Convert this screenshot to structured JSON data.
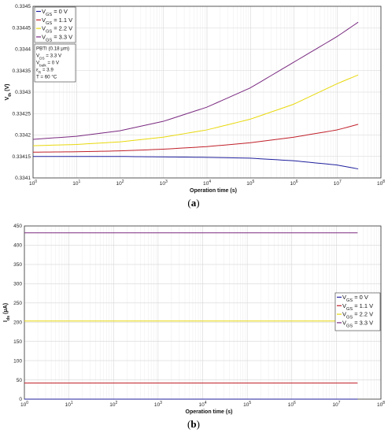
{
  "chart_data": [
    {
      "type": "line",
      "caption": "(a)",
      "xlabel": "Operation time (s)",
      "ylabel": "V_th (V)",
      "xscale": "log",
      "xlim": [
        1,
        100000000
      ],
      "ylim": [
        0.3341,
        0.3345
      ],
      "y_ticks": [
        "0.3341",
        "0.33415",
        "0.3342",
        "0.33425",
        "0.3343",
        "0.33435",
        "0.3344",
        "0.33445",
        "0.3345"
      ],
      "grid": true,
      "legend_position": "top-left",
      "series": [
        {
          "name": "V_GS = 0 V",
          "color": "#1f1f9e",
          "x": [
            1,
            10,
            100,
            1000,
            10000,
            100000,
            1000000,
            10000000,
            30000000
          ],
          "y": [
            0.33415,
            0.33415,
            0.33415,
            0.334149,
            0.334148,
            0.334146,
            0.33414,
            0.33413,
            0.334121
          ]
        },
        {
          "name": "V_GS = 1.1 V",
          "color": "#c0202a",
          "x": [
            1,
            10,
            100,
            1000,
            10000,
            100000,
            1000000,
            10000000,
            30000000
          ],
          "y": [
            0.33416,
            0.334161,
            0.334163,
            0.334167,
            0.334173,
            0.334182,
            0.334195,
            0.334212,
            0.334225
          ]
        },
        {
          "name": "V_GS = 2.2 V",
          "color": "#e8d80c",
          "x": [
            1,
            10,
            100,
            1000,
            10000,
            100000,
            1000000,
            10000000,
            30000000
          ],
          "y": [
            0.334175,
            0.334178,
            0.334184,
            0.334195,
            0.334212,
            0.334237,
            0.334272,
            0.33432,
            0.33434
          ]
        },
        {
          "name": "V_GS = 3.3 V",
          "color": "#7a2a80",
          "x": [
            1,
            10,
            100,
            1000,
            10000,
            100000,
            1000000,
            10000000,
            30000000
          ],
          "y": [
            0.33419,
            0.334197,
            0.33421,
            0.334232,
            0.334265,
            0.33431,
            0.33437,
            0.33443,
            0.334463
          ]
        }
      ],
      "annotation_lines": [
        "PBTI (0.18 μm)",
        "V_DS = 3.3 V",
        "V_bulk = 0 V",
        "ε_R = 3.9",
        "T = 60 °C"
      ]
    },
    {
      "type": "line",
      "caption": "(b)",
      "xlabel": "Operation time (s)",
      "ylabel": "I_ds (μA)",
      "xscale": "log",
      "xlim": [
        1,
        100000000
      ],
      "ylim": [
        0,
        450
      ],
      "y_ticks": [
        "0",
        "50",
        "100",
        "150",
        "200",
        "250",
        "300",
        "350",
        "400",
        "450"
      ],
      "grid": true,
      "legend_position": "center-right",
      "series": [
        {
          "name": "V_GS = 0 V",
          "color": "#1f1f9e",
          "x": [
            1,
            30000000
          ],
          "y": [
            0,
            0
          ]
        },
        {
          "name": "V_GS = 1.1 V",
          "color": "#c0202a",
          "x": [
            1,
            30000000
          ],
          "y": [
            42,
            42
          ]
        },
        {
          "name": "V_GS = 2.2 V",
          "color": "#e8d80c",
          "x": [
            1,
            30000000
          ],
          "y": [
            203,
            203
          ]
        },
        {
          "name": "V_GS = 3.3 V",
          "color": "#7a2a80",
          "x": [
            1,
            30000000
          ],
          "y": [
            432,
            432
          ]
        }
      ]
    }
  ]
}
